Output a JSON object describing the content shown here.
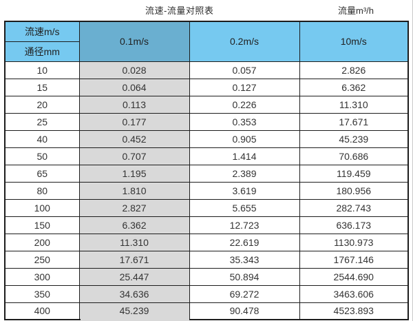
{
  "chart_data": {
    "type": "table",
    "title": "流速-流量对照表",
    "unit_label": "流量m³/h",
    "corner": {
      "velocity_label": "流速m/s",
      "diameter_label": "通径mm"
    },
    "columns": [
      "0.1m/s",
      "0.2m/s",
      "10m/s"
    ],
    "rows": [
      {
        "diameter": "10",
        "values": [
          "0.028",
          "0.057",
          "2.826"
        ]
      },
      {
        "diameter": "15",
        "values": [
          "0.064",
          "0.127",
          "6.362"
        ]
      },
      {
        "diameter": "20",
        "values": [
          "0.113",
          "0.226",
          "11.310"
        ]
      },
      {
        "diameter": "25",
        "values": [
          "0.177",
          "0.353",
          "17.671"
        ]
      },
      {
        "diameter": "40",
        "values": [
          "0.452",
          "0.905",
          "45.239"
        ]
      },
      {
        "diameter": "50",
        "values": [
          "0.707",
          "1.414",
          "70.686"
        ]
      },
      {
        "diameter": "65",
        "values": [
          "1.195",
          "2.389",
          "119.459"
        ]
      },
      {
        "diameter": "80",
        "values": [
          "1.810",
          "3.619",
          "180.956"
        ]
      },
      {
        "diameter": "100",
        "values": [
          "2.827",
          "5.655",
          "282.743"
        ]
      },
      {
        "diameter": "150",
        "values": [
          "6.362",
          "12.723",
          "636.173"
        ]
      },
      {
        "diameter": "200",
        "values": [
          "11.310",
          "22.619",
          "1130.973"
        ]
      },
      {
        "diameter": "250",
        "values": [
          "17.671",
          "35.343",
          "1767.146"
        ]
      },
      {
        "diameter": "300",
        "values": [
          "25.447",
          "50.894",
          "2544.690"
        ]
      },
      {
        "diameter": "350",
        "values": [
          "34.636",
          "69.272",
          "3463.606"
        ]
      },
      {
        "diameter": "400",
        "values": [
          "45.239",
          "90.478",
          "4523.893"
        ]
      }
    ]
  },
  "colors": {
    "header_blue": "#76C9F0",
    "header_selected_blue": "#6AAFD0",
    "column_gray": "#D9D9D9",
    "border": "#1C1C1C",
    "text": "#333333"
  }
}
